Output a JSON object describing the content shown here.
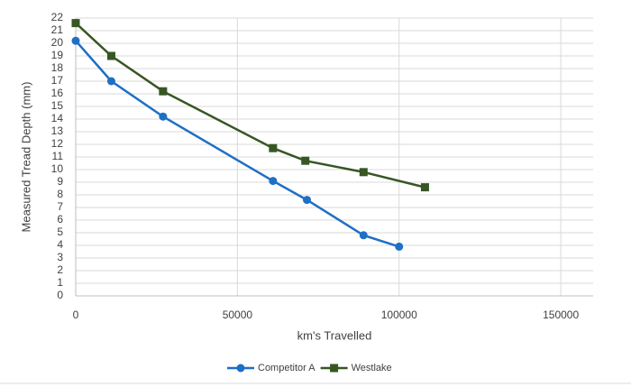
{
  "chart_data": {
    "type": "line",
    "x_label": "km's Travelled",
    "y_label": "Measured Tread Depth (mm)",
    "xlim": [
      0,
      160000
    ],
    "xticks": [
      0,
      50000,
      100000,
      150000
    ],
    "ylim": [
      0,
      22
    ],
    "yticks": [
      0,
      1,
      2,
      3,
      4,
      5,
      6,
      7,
      8,
      9,
      10,
      11,
      12,
      13,
      14,
      15,
      16,
      17,
      18,
      19,
      20,
      21,
      22
    ],
    "grid": true,
    "legend": "bottom",
    "series": [
      {
        "name": "Competitor A",
        "color": "#1f6fc5",
        "marker": "circle",
        "x": [
          0,
          11000,
          27000,
          61000,
          71500,
          89000,
          100000
        ],
        "values": [
          20.2,
          17.0,
          14.2,
          9.1,
          7.6,
          4.8,
          3.9
        ]
      },
      {
        "name": "Westlake",
        "color": "#375623",
        "marker": "square",
        "x": [
          0,
          11000,
          27000,
          61000,
          71000,
          89000,
          108000
        ],
        "values": [
          21.6,
          19.0,
          16.2,
          11.7,
          10.7,
          9.8,
          8.6
        ]
      }
    ]
  }
}
